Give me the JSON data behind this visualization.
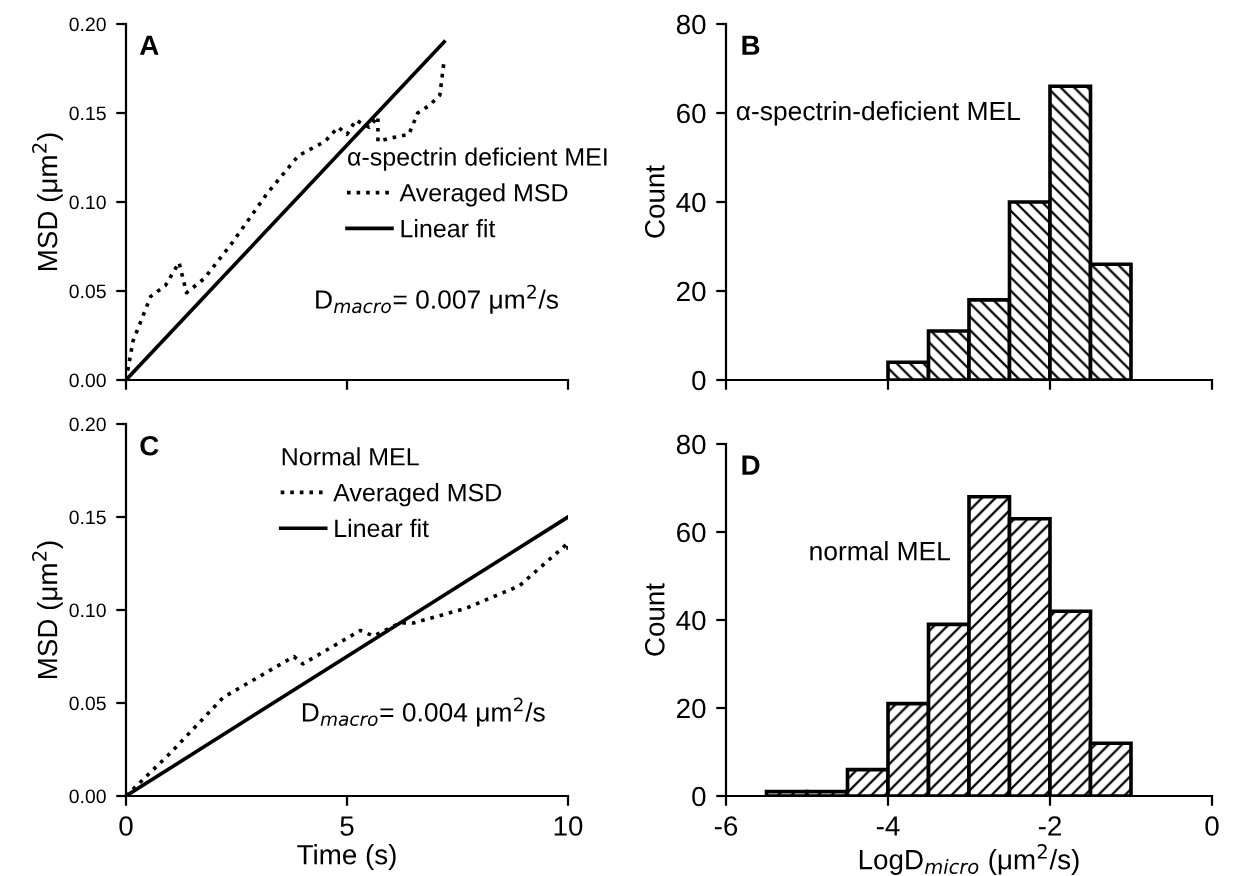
{
  "chart_data": [
    {
      "type": "line",
      "title": "A",
      "ylabel": "MSD (μm$^{2}$)",
      "legend_title": "α-spectrin deficient MEI",
      "legend": "center right",
      "tick_labels": "y",
      "xlim": [
        0,
        10
      ],
      "xticks": [
        {
          "value": 0,
          "label": null
        },
        {
          "value": 5,
          "label": null
        },
        {
          "value": 10,
          "label": null
        }
      ],
      "ylim": [
        0,
        0.2
      ],
      "yticks": [
        {
          "value": 0,
          "label": "0.00"
        },
        {
          "value": 0.05,
          "label": "0.05"
        },
        {
          "value": 0.1,
          "label": "0.10"
        },
        {
          "value": 0.15,
          "label": "0.15"
        },
        {
          "value": 0.2,
          "label": "0.20"
        }
      ],
      "annotations": [
        "D$_{macro}$= 0.007 μm$^{2}$/s"
      ],
      "series": [
        {
          "name": "Averaged MSD",
          "color": "#000000",
          "line_style": "dotted",
          "x": [
            0,
            0.16,
            0.56,
            0.89,
            1.2,
            1.37,
            1.77,
            2.4,
            3.2,
            3.9,
            4.5,
            4.8,
            5.0,
            5.2,
            5.5,
            5.7,
            5.7,
            6.0,
            6.4,
            6.6,
            6.85,
            7.1,
            7.2
          ],
          "values": [
            0,
            0.022,
            0.047,
            0.053,
            0.066,
            0.049,
            0.057,
            0.077,
            0.105,
            0.126,
            0.134,
            0.142,
            0.138,
            0.146,
            0.142,
            0.148,
            0.134,
            0.136,
            0.138,
            0.15,
            0.154,
            0.16,
            0.18
          ]
        },
        {
          "name": "Linear fit",
          "color": "#000000",
          "line_style": "solid",
          "x": [
            0,
            7.2
          ],
          "values": [
            0,
            0.19
          ]
        }
      ]
    },
    {
      "type": "histogram",
      "title": "B",
      "ylabel": "Count",
      "tick_labels": "y",
      "xlim": [
        -6,
        0
      ],
      "xticks": [
        {
          "value": -6,
          "label": null
        },
        {
          "value": -4,
          "label": null
        },
        {
          "value": -2,
          "label": null
        },
        {
          "value": 0,
          "label": null
        }
      ],
      "ylim": [
        0,
        80
      ],
      "yticks": [
        0,
        20,
        40,
        60,
        80
      ],
      "color": "#000000",
      "annotations": [
        "α-spectrin-deficient MEL"
      ],
      "bins": [
        -4,
        -3.5,
        -3,
        -2.5,
        -2,
        -1.5,
        -1
      ],
      "values": [
        4,
        11,
        18,
        40,
        66,
        26
      ]
    },
    {
      "type": "line",
      "title": "C",
      "xlabel": "Time (s)",
      "ylabel": "MSD (μm$^{2}$)",
      "legend_title": "Normal MEL",
      "legend": "top",
      "xlim": [
        0,
        10
      ],
      "xticks": [
        0,
        5,
        10
      ],
      "ylim": [
        0,
        0.2
      ],
      "yticks": [
        {
          "value": 0,
          "label": "0.00"
        },
        {
          "value": 0.05,
          "label": "0.05"
        },
        {
          "value": 0.1,
          "label": "0.10"
        },
        {
          "value": 0.15,
          "label": "0.15"
        },
        {
          "value": 0.2,
          "label": "0.20"
        }
      ],
      "annotations": [
        "D$_{macro}$= 0.004 μm$^{2}$/s"
      ],
      "series": [
        {
          "name": "Averaged MSD",
          "color": "#000000",
          "line_style": "dotted",
          "x": [
            0,
            1.0,
            2.2,
            3.8,
            4.0,
            5.3,
            5.6,
            6.2,
            6.5,
            7.7,
            8.9,
            10,
            10
          ],
          "values": [
            0,
            0.023,
            0.053,
            0.075,
            0.071,
            0.089,
            0.086,
            0.093,
            0.093,
            0.101,
            0.113,
            0.136,
            0.132
          ]
        },
        {
          "name": "Linear fit",
          "color": "#000000",
          "line_style": "solid",
          "x": [
            0,
            10
          ],
          "values": [
            0,
            0.15
          ]
        }
      ]
    },
    {
      "type": "histogram",
      "title": "D",
      "xlabel": "LogD$_{micro}$ (μm$^{2}$/s)",
      "ylabel": "Count",
      "xlim": [
        -6,
        0
      ],
      "xticks": [
        -6,
        -4,
        -2,
        0
      ],
      "ylim": [
        0,
        80
      ],
      "yticks": [
        0,
        20,
        40,
        60,
        80
      ],
      "color": "#000000",
      "annotations": [
        "normal MEL"
      ],
      "bins": [
        -5.5,
        -5,
        -4.5,
        -4,
        -3.5,
        -3,
        -2.5,
        -2,
        -1.5,
        -1
      ],
      "values": [
        1,
        1,
        6,
        21,
        39,
        68,
        63,
        42,
        12
      ]
    }
  ]
}
